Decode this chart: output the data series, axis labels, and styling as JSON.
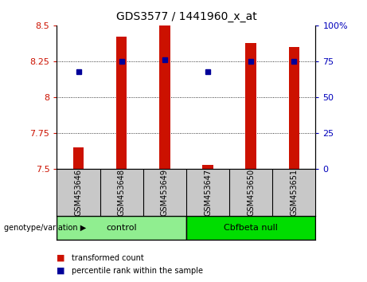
{
  "title": "GDS3577 / 1441960_x_at",
  "samples": [
    "GSM453646",
    "GSM453648",
    "GSM453649",
    "GSM453647",
    "GSM453650",
    "GSM453651"
  ],
  "transformed_counts": [
    7.65,
    8.42,
    8.5,
    7.53,
    8.38,
    8.35
  ],
  "percentile_ranks": [
    68,
    75,
    76,
    68,
    75,
    75
  ],
  "groups": [
    {
      "label": "control",
      "color": "#90EE90",
      "n": 3
    },
    {
      "label": "Cbfbeta null",
      "color": "#00DD00",
      "n": 3
    }
  ],
  "ylim_left": [
    7.5,
    8.5
  ],
  "ylim_right": [
    0,
    100
  ],
  "yticks_left": [
    7.5,
    7.75,
    8.0,
    8.25,
    8.5
  ],
  "yticks_right": [
    0,
    25,
    50,
    75,
    100
  ],
  "bar_color": "#CC1100",
  "dot_color": "#000099",
  "bar_bottom": 7.5,
  "plot_bg": "#FFFFFF",
  "sample_box_color": "#C8C8C8",
  "legend_bar_label": "transformed count",
  "legend_dot_label": "percentile rank within the sample",
  "group_label_prefix": "genotype/variation"
}
